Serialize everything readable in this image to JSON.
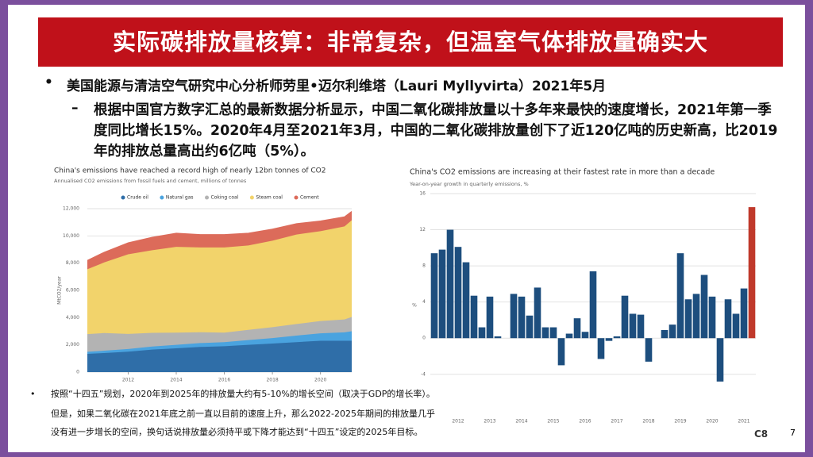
{
  "title": "实际碳排放量核算：非常复杂，但温室气体排放量确实大",
  "bullets": [
    {
      "text": "美国能源与清洁空气研究中心分析师劳里•迈尔利维塔（Lauri Myllyvirta）2021年5月",
      "sub": [
        "根据中国官方数字汇总的最新数据分析显示，中国二氧化碳排放量以十多年来最快的速度增长，2021年第一季度同比增长15%。2020年4月至2021年3月，中国的二氧化碳排放量创下了近120亿吨的历史新高，比2019年的排放总量高出约6亿吨（5%）。"
      ]
    }
  ],
  "notes": [
    "按照“十四五”规划，2020年到2025年的排放量大约有5-10%的增长空间（取决于GDP的增长率）。",
    "但是，如果二氧化碳在2021年底之前一直以目前的速度上升，那么2022-2025年期间的排放量几乎",
    "没有进一步增长的空间，换句话说排放量必须持平或下降才能达到“十四五”设定的2025年目标。"
  ],
  "page_number": "7",
  "logo": "C8",
  "chart_data": [
    {
      "type": "area",
      "title": "China's emissions have reached a record high of nearly 12bn tonnes of CO2",
      "subtitle": "Annualised CO2 emissions from fossil fuels and cement, millions of tonnes",
      "y_label": "MtCO2/year",
      "x": [
        2010.3,
        2011,
        2012,
        2013,
        2014,
        2015,
        2016,
        2017,
        2018,
        2019,
        2020,
        2021,
        2021.3
      ],
      "xlim": [
        2010.3,
        2021.3
      ],
      "xticks": [
        2012,
        2014,
        2016,
        2018,
        2020
      ],
      "ylim": [
        0,
        12000
      ],
      "yticks": [
        0,
        {
          "value": 2000,
          "label": "2,000"
        },
        {
          "value": 4000,
          "label": "4,000"
        },
        {
          "value": 6000,
          "label": "6,000"
        },
        {
          "value": 8000,
          "label": "8,000"
        },
        {
          "value": 10000,
          "label": "10,000"
        },
        {
          "value": 12000,
          "label": "12,000"
        }
      ],
      "grid": true,
      "series": [
        {
          "name": "Crude oil",
          "color": "#2f6ea8",
          "values": [
            1340,
            1400,
            1500,
            1650,
            1750,
            1850,
            1900,
            2000,
            2100,
            2200,
            2300,
            2300,
            2300
          ]
        },
        {
          "name": "Natural gas",
          "color": "#4aa3df",
          "values": [
            150,
            170,
            200,
            230,
            250,
            280,
            300,
            350,
            400,
            480,
            550,
            620,
            700
          ]
        },
        {
          "name": "Coking coal",
          "color": "#b3b3b3",
          "values": [
            1300,
            1300,
            1100,
            1000,
            900,
            800,
            700,
            750,
            800,
            850,
            900,
            950,
            1050
          ]
        },
        {
          "name": "Steam coal",
          "color": "#f2d36b",
          "values": [
            4760,
            5180,
            5850,
            6070,
            6300,
            6220,
            6250,
            6200,
            6350,
            6570,
            6600,
            6830,
            7100
          ]
        },
        {
          "name": "Cement",
          "color": "#dc6b5a",
          "values": [
            650,
            750,
            850,
            950,
            1000,
            950,
            950,
            900,
            850,
            800,
            750,
            700,
            650
          ]
        }
      ]
    },
    {
      "type": "bar",
      "title": "China's CO2 emissions are increasing at their fastest rate in more than a decade",
      "subtitle": "Year-on-year growth in quarterly emissions, %",
      "y_label": "%",
      "categories": [
        null,
        null,
        null,
        "2012",
        null,
        null,
        null,
        "2013",
        null,
        null,
        null,
        "2014",
        null,
        null,
        null,
        "2015",
        null,
        null,
        null,
        "2016",
        null,
        null,
        null,
        "2017",
        null,
        null,
        null,
        "2018",
        null,
        null,
        null,
        "2019",
        null,
        null,
        null,
        "2020",
        null,
        null,
        null,
        "2021",
        null
      ],
      "values": [
        9.4,
        9.8,
        12.0,
        10.1,
        8.4,
        4.7,
        1.2,
        4.6,
        0.2,
        0.0,
        4.9,
        4.6,
        2.5,
        5.6,
        1.2,
        1.2,
        -3.0,
        0.5,
        2.2,
        0.7,
        7.4,
        -2.3,
        -0.3,
        0.2,
        4.7,
        2.7,
        2.6,
        -2.6,
        0.0,
        0.9,
        1.5,
        9.4,
        4.3,
        4.9,
        7.0,
        4.6,
        -4.8,
        4.3,
        2.7,
        5.5,
        14.5
      ],
      "color": "#1d4e7e",
      "last_color": "#c0392b",
      "ylim": [
        -5.6,
        16
      ],
      "yticks": [
        -4,
        0,
        4,
        8,
        12,
        16
      ],
      "grid": true
    }
  ]
}
